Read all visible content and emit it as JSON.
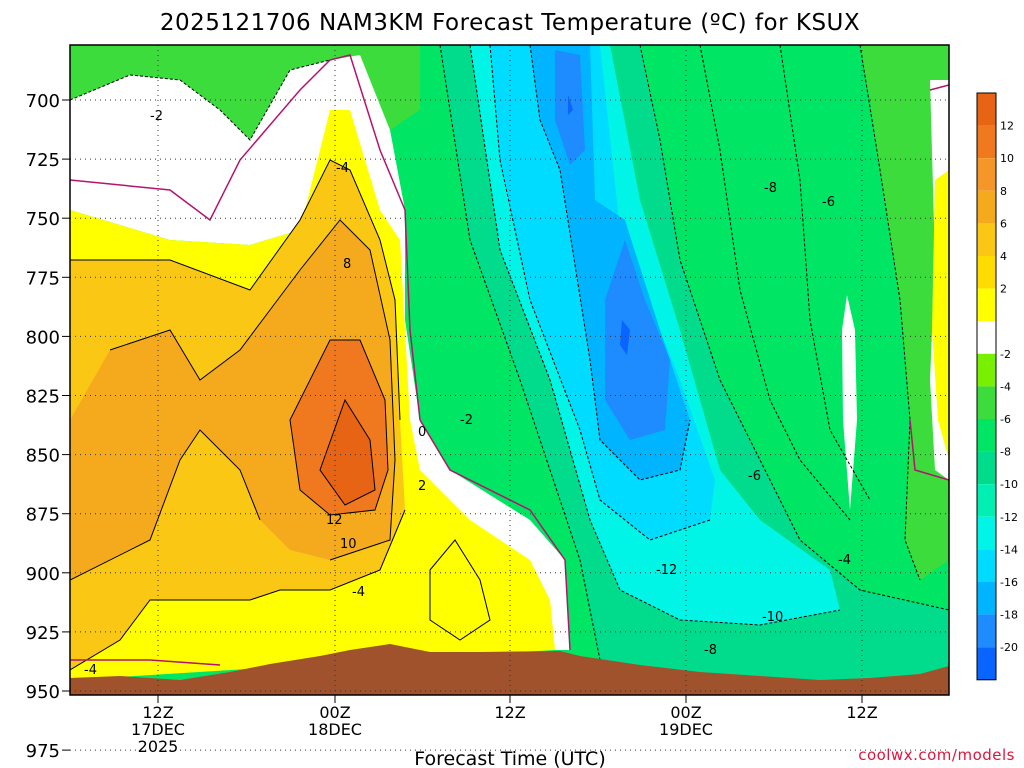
{
  "chart_data": {
    "type": "heatmap",
    "title": "2025121706 NAM3KM Forecast Temperature (ºC) for KSUX",
    "xlabel": "Forecast Time (UTC)",
    "credit": "coolwx.com/models",
    "y_axis": {
      "ticks": [
        "700",
        "725",
        "750",
        "775",
        "800",
        "825",
        "850",
        "875",
        "900",
        "925",
        "950",
        "975"
      ]
    },
    "x_axis": {
      "ticks": [
        {
          "hour": "12Z",
          "day": "17DEC",
          "year": "2025"
        },
        {
          "hour": "00Z",
          "day": "18DEC",
          "year": ""
        },
        {
          "hour": "12Z",
          "day": "",
          "year": ""
        },
        {
          "hour": "00Z",
          "day": "19DEC",
          "year": ""
        },
        {
          "hour": "12Z",
          "day": "",
          "year": ""
        }
      ]
    },
    "colorbar": [
      {
        "label": "12",
        "color": "#f0781e"
      },
      {
        "label": "10",
        "color": "#f59628"
      },
      {
        "label": "8",
        "color": "#f5aa1e"
      },
      {
        "label": "6",
        "color": "#fac814"
      },
      {
        "label": "4",
        "color": "#ffdc00"
      },
      {
        "label": "2",
        "color": "#ffff00"
      },
      {
        "label": "",
        "color": "#ffffff"
      },
      {
        "label": "-2",
        "color": "#78f000"
      },
      {
        "label": "-4",
        "color": "#3cdc3c"
      },
      {
        "label": "-6",
        "color": "#00e664"
      },
      {
        "label": "-8",
        "color": "#00dc8c"
      },
      {
        "label": "-10",
        "color": "#00f0b4"
      },
      {
        "label": "-12",
        "color": "#00f5e6"
      },
      {
        "label": "-14",
        "color": "#00dcff"
      },
      {
        "label": "-16",
        "color": "#00b4ff"
      },
      {
        "label": "-18",
        "color": "#1e8cff"
      },
      {
        "label": "-20",
        "color": "#0a64ff"
      }
    ],
    "colorbar_top_color": "#e66414",
    "contour_labels": [
      {
        "text": "-2"
      },
      {
        "text": "-4"
      },
      {
        "text": "8"
      },
      {
        "text": "0"
      },
      {
        "text": "-2"
      },
      {
        "text": "2"
      },
      {
        "text": "12"
      },
      {
        "text": "10"
      },
      {
        "text": "-4"
      },
      {
        "text": "-4"
      },
      {
        "text": "-8"
      },
      {
        "text": "-6"
      },
      {
        "text": "-6"
      },
      {
        "text": "-12"
      },
      {
        "text": "-10"
      },
      {
        "text": "-8"
      },
      {
        "text": "-4"
      }
    ],
    "terrain_color": "#a0522d"
  }
}
